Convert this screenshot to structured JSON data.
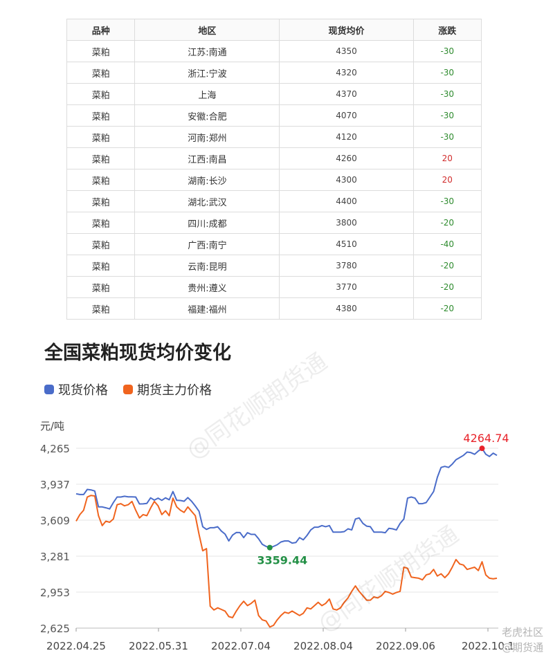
{
  "table": {
    "headers": [
      "品种",
      "地区",
      "现货均价",
      "涨跌"
    ],
    "rows": [
      {
        "variety": "菜粕",
        "region": "江苏:南通",
        "price": "4350",
        "change": "-30",
        "dir": "down"
      },
      {
        "variety": "菜粕",
        "region": "浙江:宁波",
        "price": "4320",
        "change": "-30",
        "dir": "down"
      },
      {
        "variety": "菜粕",
        "region": "上海",
        "price": "4370",
        "change": "-30",
        "dir": "down"
      },
      {
        "variety": "菜粕",
        "region": "安徽:合肥",
        "price": "4070",
        "change": "-30",
        "dir": "down"
      },
      {
        "variety": "菜粕",
        "region": "河南:郑州",
        "price": "4120",
        "change": "-30",
        "dir": "down"
      },
      {
        "variety": "菜粕",
        "region": "江西:南昌",
        "price": "4260",
        "change": "20",
        "dir": "up"
      },
      {
        "variety": "菜粕",
        "region": "湖南:长沙",
        "price": "4300",
        "change": "20",
        "dir": "up"
      },
      {
        "variety": "菜粕",
        "region": "湖北:武汉",
        "price": "4400",
        "change": "-30",
        "dir": "down"
      },
      {
        "variety": "菜粕",
        "region": "四川:成都",
        "price": "3800",
        "change": "-20",
        "dir": "down"
      },
      {
        "variety": "菜粕",
        "region": "广西:南宁",
        "price": "4510",
        "change": "-40",
        "dir": "down"
      },
      {
        "variety": "菜粕",
        "region": "云南:昆明",
        "price": "3780",
        "change": "-20",
        "dir": "down"
      },
      {
        "variety": "菜粕",
        "region": "贵州:遵义",
        "price": "3770",
        "change": "-20",
        "dir": "down"
      },
      {
        "variety": "菜粕",
        "region": "福建:福州",
        "price": "4380",
        "change": "-20",
        "dir": "down"
      }
    ]
  },
  "colors": {
    "spot": "#4a6cc9",
    "futures": "#f0641e",
    "max": "#e8232a",
    "min": "#239046",
    "grid": "#e6e6e6",
    "up": "#d12b2b",
    "down": "#2e8b2e"
  },
  "watermarks": [
    "@同花顺期货通",
    "@同花顺期货通"
  ],
  "corner_text": {
    "line1": "老虎社区",
    "line2": "@期货通"
  },
  "chart_data": {
    "type": "line",
    "title": "全国菜粕现货均价变化",
    "ylabel": "元/吨",
    "legend_position": "top-left",
    "grid": true,
    "ylim": [
      2625,
      4265
    ],
    "yticks": [
      "4,265",
      "3,937",
      "3,609",
      "3,281",
      "2,953",
      "2,625"
    ],
    "xticks": [
      "2022.04.25",
      "2022.05.31",
      "2022.07.04",
      "2022.08.04",
      "2022.09.06",
      "2022.10.1"
    ],
    "max_label": "4264.74",
    "min_label": "3359.44",
    "series": [
      {
        "name": "现货价格",
        "color": "#4a6cc9",
        "values": [
          3850,
          3843,
          3843,
          3890,
          3885,
          3875,
          3730,
          3730,
          3722,
          3712,
          3770,
          3820,
          3820,
          3827,
          3822,
          3822,
          3820,
          3757,
          3758,
          3762,
          3813,
          3792,
          3810,
          3790,
          3813,
          3795,
          3870,
          3790,
          3789,
          3782,
          3815,
          3782,
          3738,
          3690,
          3550,
          3525,
          3540,
          3540,
          3549,
          3510,
          3482,
          3420,
          3473,
          3497,
          3496,
          3450,
          3495,
          3480,
          3480,
          3440,
          3389,
          3370,
          3359,
          3370,
          3385,
          3410,
          3420,
          3420,
          3400,
          3405,
          3450,
          3430,
          3470,
          3520,
          3545,
          3545,
          3560,
          3550,
          3560,
          3500,
          3500,
          3500,
          3505,
          3530,
          3520,
          3620,
          3630,
          3580,
          3555,
          3550,
          3500,
          3500,
          3500,
          3495,
          3535,
          3530,
          3520,
          3580,
          3620,
          3810,
          3820,
          3810,
          3760,
          3760,
          3770,
          3820,
          3870,
          4000,
          4090,
          4100,
          4090,
          4120,
          4160,
          4180,
          4200,
          4230,
          4225,
          4210,
          4240,
          4264,
          4210,
          4190,
          4220,
          4200
        ]
      },
      {
        "name": "期货主力价格",
        "color": "#f0641e",
        "values": [
          3600,
          3660,
          3700,
          3820,
          3835,
          3830,
          3650,
          3560,
          3600,
          3590,
          3620,
          3750,
          3760,
          3740,
          3750,
          3780,
          3700,
          3630,
          3660,
          3650,
          3720,
          3780,
          3740,
          3660,
          3695,
          3650,
          3810,
          3730,
          3700,
          3680,
          3730,
          3690,
          3650,
          3480,
          3330,
          3350,
          2825,
          2790,
          2810,
          2795,
          2780,
          2730,
          2720,
          2780,
          2830,
          2870,
          2830,
          2850,
          2880,
          2740,
          2700,
          2690,
          2635,
          2650,
          2700,
          2740,
          2770,
          2760,
          2780,
          2760,
          2740,
          2760,
          2810,
          2800,
          2830,
          2860,
          2830,
          2850,
          2890,
          2800,
          2790,
          2810,
          2860,
          2900,
          2960,
          3010,
          2960,
          2920,
          2880,
          2880,
          2910,
          2900,
          2920,
          2960,
          2950,
          2935,
          2950,
          2960,
          3180,
          3170,
          3090,
          3085,
          3080,
          3065,
          3110,
          3120,
          3160,
          3100,
          3120,
          3085,
          3120,
          3180,
          3250,
          3210,
          3200,
          3160,
          3170,
          3180,
          3150,
          3230,
          3110,
          3080,
          3075,
          3080
        ]
      }
    ]
  }
}
